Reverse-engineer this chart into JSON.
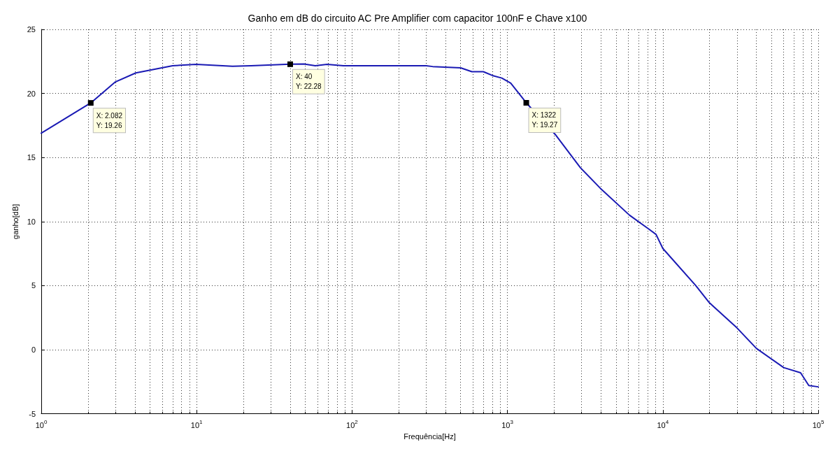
{
  "chart_data": {
    "type": "line",
    "title": "Ganho em dB do circuito AC Pre Amplifier com capacitor 100nF e Chave x100",
    "xlabel": "Frequência[Hz]",
    "ylabel": "ganho[dB]",
    "log": "x",
    "grid": true,
    "marker": "none",
    "line_style": "solid",
    "xlim": [
      1,
      100000
    ],
    "xticks": [
      {
        "value": 1,
        "label": "10$^{0}$"
      },
      {
        "value": 10,
        "label": "10$^{1}$"
      },
      {
        "value": 100,
        "label": "10$^{2}$"
      },
      {
        "value": 1000,
        "label": "10$^{3}$"
      },
      {
        "value": 10000,
        "label": "10$^{4}$"
      },
      {
        "value": 100000,
        "label": "10$^{5}$"
      }
    ],
    "ylim": [
      -5,
      25
    ],
    "yticks": [
      -5,
      0,
      5,
      10,
      15,
      20,
      25
    ],
    "annotations": [
      {
        "text": "X: 2.082\nY: 19.26",
        "x": 2.082,
        "y": 19.26
      },
      {
        "text": "X: 40\nY: 22.28",
        "x": 40,
        "y": 22.28
      },
      {
        "text": "X: 1322\nY: 19.27",
        "x": 1322,
        "y": 19.27
      }
    ],
    "series": [
      {
        "color": "#1a1ab4",
        "x": [
          1,
          2.082,
          3,
          4.06,
          7,
          9.9,
          17,
          22.4,
          40,
          49,
          58,
          69,
          88,
          300,
          330,
          500,
          590,
          700,
          800,
          920,
          1050,
          1322,
          2030,
          2950,
          3960,
          6100,
          8150,
          9040,
          10000,
          16300,
          19800,
          30000,
          40000,
          60000,
          77000,
          87000,
          100000
        ],
        "values": [
          16.9,
          19.26,
          20.9,
          21.6,
          22.16,
          22.27,
          22.12,
          22.16,
          22.28,
          22.3,
          22.16,
          22.27,
          22.16,
          22.16,
          22.1,
          22.0,
          21.7,
          21.7,
          21.4,
          21.2,
          20.8,
          19.27,
          16.8,
          14.2,
          12.6,
          10.5,
          9.4,
          9.0,
          7.9,
          5.0,
          3.7,
          1.7,
          0.1,
          -1.4,
          -1.8,
          -2.8,
          -2.9
        ]
      }
    ]
  }
}
